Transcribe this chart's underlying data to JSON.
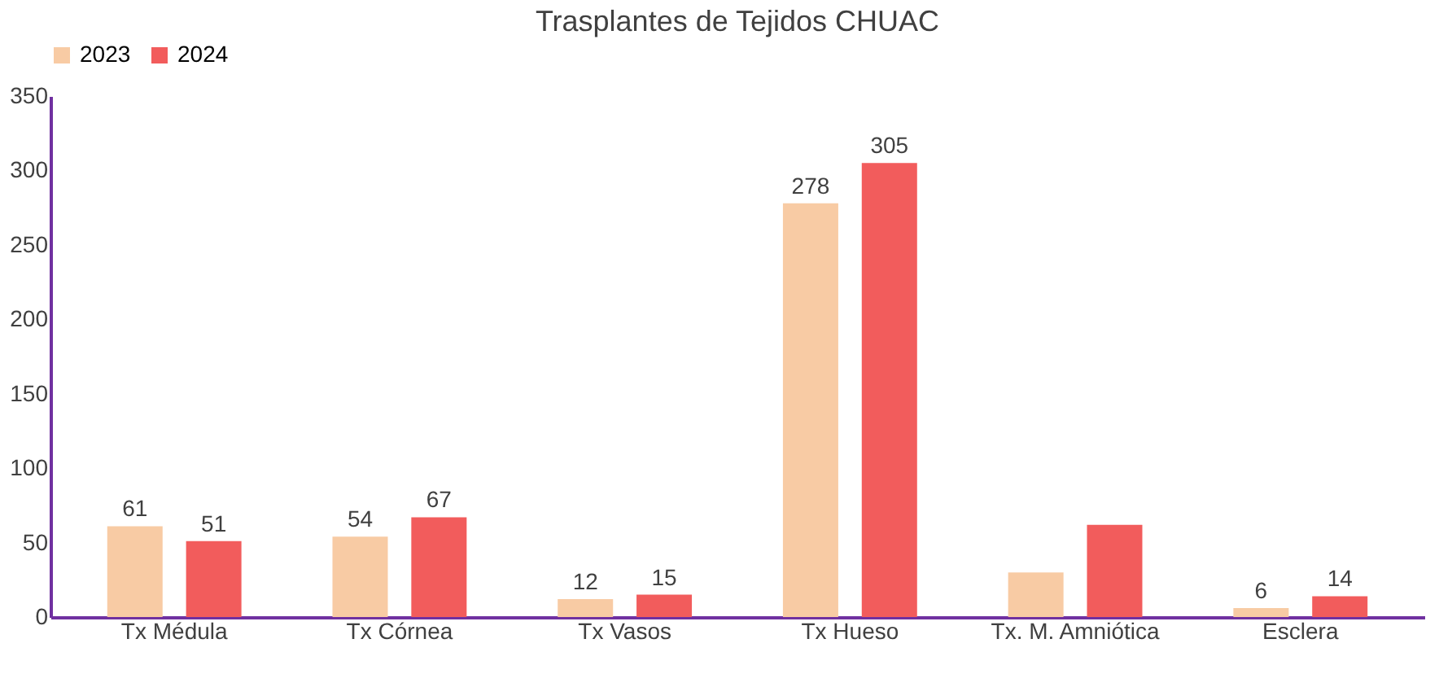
{
  "chart_data": {
    "type": "bar",
    "title": "Trasplantes de Tejidos CHUAC",
    "categories": [
      "Tx Médula",
      "Tx Córnea",
      "Tx  Vasos",
      "Tx Hueso",
      "Tx. M. Amniótica",
      "Esclera"
    ],
    "series": [
      {
        "name": "2023",
        "color": "#f8cba4",
        "values": [
          61,
          54,
          12,
          278,
          30,
          6
        ],
        "value_labels": [
          "61",
          "54",
          "12",
          "278",
          null,
          "6"
        ]
      },
      {
        "name": "2024",
        "color": "#f25c5c",
        "values": [
          51,
          67,
          15,
          305,
          62,
          14
        ],
        "value_labels": [
          "51",
          "67",
          "15",
          "305",
          null,
          "14"
        ]
      }
    ],
    "ylim": [
      0,
      350
    ],
    "yticks": [
      0,
      50,
      100,
      150,
      200,
      250,
      300,
      350
    ],
    "grid": false,
    "legend": "top"
  }
}
